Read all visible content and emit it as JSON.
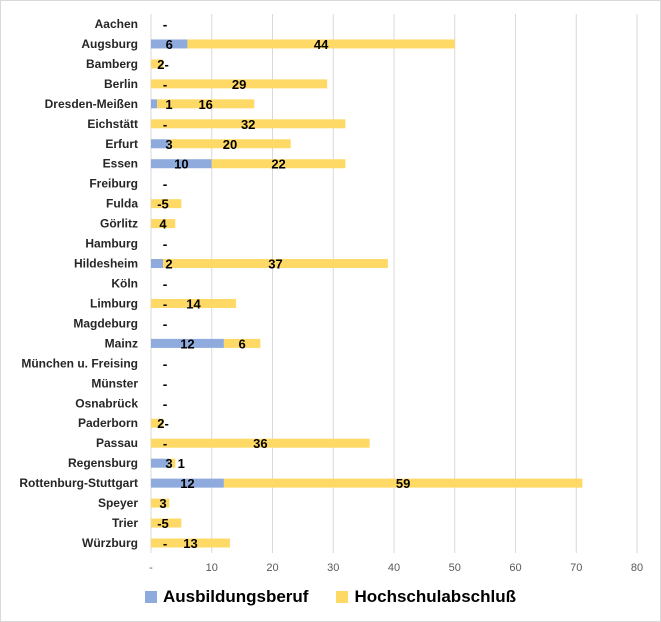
{
  "chart_data": {
    "type": "bar",
    "orientation": "horizontal",
    "stacked": true,
    "title": "",
    "xlabel": "",
    "ylabel": "",
    "xlim": [
      0,
      80
    ],
    "x_ticks": [
      "-",
      "10",
      "20",
      "30",
      "40",
      "50",
      "60",
      "70",
      "80"
    ],
    "grid": true,
    "legend_position": "bottom",
    "categories": [
      "Aachen",
      "Augsburg",
      "Bamberg",
      "Berlin",
      "Dresden-Meißen",
      "Eichstätt",
      "Erfurt",
      "Essen",
      "Freiburg",
      "Fulda",
      "Görlitz",
      "Hamburg",
      "Hildesheim",
      "Köln",
      "Limburg",
      "Magdeburg",
      "Mainz",
      "München u. Freising",
      "Münster",
      "Osnabrück",
      "Paderborn",
      "Passau",
      "Regensburg",
      "Rottenburg-Stuttgart",
      "Speyer",
      "Trier",
      "Würzburg"
    ],
    "series": [
      {
        "name": "Ausbildungsberuf",
        "color": "#8faadc",
        "values": [
          0,
          6,
          0,
          0,
          1,
          0,
          3,
          10,
          0,
          0,
          0,
          0,
          2,
          0,
          0,
          0,
          12,
          0,
          0,
          0,
          0,
          0,
          3,
          12,
          0,
          0,
          0
        ],
        "labels": [
          "-",
          "6",
          "",
          "-",
          "1",
          "-",
          "3",
          "10",
          "-",
          "",
          "",
          "-",
          "2",
          "-",
          "-",
          "-",
          "12",
          "-",
          "-",
          "-",
          "",
          "-",
          "3",
          "12",
          "",
          "",
          "-"
        ]
      },
      {
        "name": "Hochschulabschluß",
        "color": "#ffd966",
        "values": [
          0,
          44,
          2,
          29,
          16,
          32,
          20,
          22,
          0,
          5,
          4,
          0,
          37,
          0,
          14,
          0,
          6,
          0,
          0,
          0,
          2,
          36,
          1,
          59,
          3,
          5,
          13
        ],
        "labels": [
          "-",
          "44",
          "2-",
          "29",
          "16",
          "32",
          "20",
          "22",
          "-",
          "-5",
          "4",
          "-",
          "37",
          "-",
          "14",
          "-",
          "6",
          "-",
          "-",
          "-",
          "2-",
          "36",
          "1",
          "59",
          "3",
          "-5",
          "13"
        ]
      }
    ]
  }
}
